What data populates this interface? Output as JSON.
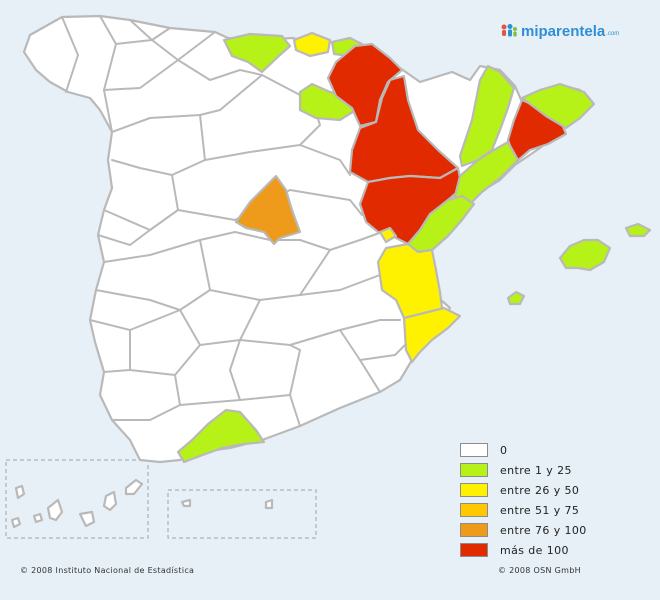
{
  "logo": {
    "text": "miparentela",
    "suffix": ".com"
  },
  "legend": [
    {
      "label": "0",
      "color": "#ffffff"
    },
    {
      "label": "entre 1 y 25",
      "color": "#b6f118"
    },
    {
      "label": "entre 26 y 50",
      "color": "#fff200"
    },
    {
      "label": "entre 51 y 75",
      "color": "#ffc800"
    },
    {
      "label": "entre 76 y 100",
      "color": "#ee9a1a"
    },
    {
      "label": "más de 100",
      "color": "#e22a00"
    }
  ],
  "footer": {
    "left": "© 2008 Instituto Nacional de Estadística",
    "right": "© 2008 OSN GmbH"
  },
  "colors": {
    "sea": "#e7f0f6",
    "border": "#b9b9b9",
    "none": "#ffffff",
    "low": "#b6f118",
    "mid": "#fff200",
    "mid_high": "#ffc800",
    "high": "#ee9a1a",
    "top": "#e22a00"
  },
  "regions": {
    "white": [
      "peninsula",
      "canarias"
    ],
    "low": [
      "guipuzcoa",
      "cantabria",
      "la-rioja",
      "girona",
      "tarragona",
      "castellon",
      "malaga",
      "mallorca",
      "menorca",
      "ibiza"
    ],
    "mid": [
      "vizcaya",
      "valencia",
      "alicante",
      "rincon-de-ademuz"
    ],
    "high": [
      "madrid"
    ],
    "top": [
      "navarra",
      "zaragoza",
      "teruel",
      "barcelona"
    ]
  }
}
